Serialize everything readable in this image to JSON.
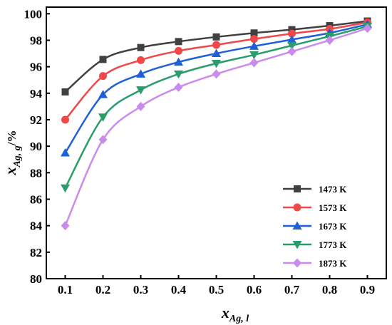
{
  "chart_data": {
    "type": "line",
    "x": [
      0.1,
      0.2,
      0.3,
      0.4,
      0.5,
      0.6,
      0.7,
      0.8,
      0.9
    ],
    "xlim": [
      0.05,
      0.95
    ],
    "ylim": [
      80,
      100.5
    ],
    "xticks": [
      "0.1",
      "0.2",
      "0.3",
      "0.4",
      "0.5",
      "0.6",
      "0.7",
      "0.8",
      "0.9"
    ],
    "yticks": [
      "80",
      "82",
      "84",
      "86",
      "88",
      "90",
      "92",
      "94",
      "96",
      "98",
      "100"
    ],
    "ytick_values": [
      80,
      82,
      84,
      86,
      88,
      90,
      92,
      94,
      96,
      98,
      100
    ],
    "xlabel": {
      "main": "x",
      "sub": "Ag, l"
    },
    "ylabel": {
      "main": "x",
      "sub": "Ag, g",
      "unit": "/%"
    },
    "legend_position": "bottom-right",
    "series": [
      {
        "name": "1473 K",
        "color": "#404040",
        "marker": "square",
        "values": [
          94.1,
          96.55,
          97.45,
          97.9,
          98.25,
          98.55,
          98.8,
          99.1,
          99.45
        ]
      },
      {
        "name": "1573 K",
        "color": "#f04848",
        "marker": "circle",
        "values": [
          92.0,
          95.3,
          96.5,
          97.2,
          97.65,
          98.1,
          98.5,
          98.85,
          99.35
        ]
      },
      {
        "name": "1673 K",
        "color": "#1f60d8",
        "marker": "triangle-up",
        "values": [
          89.5,
          93.9,
          95.45,
          96.35,
          97.0,
          97.55,
          98.05,
          98.55,
          99.2
        ]
      },
      {
        "name": "1773 K",
        "color": "#2a9d6a",
        "marker": "triangle-down",
        "values": [
          86.85,
          92.2,
          94.25,
          95.45,
          96.25,
          96.9,
          97.6,
          98.3,
          99.05
        ]
      },
      {
        "name": "1873 K",
        "color": "#c98cec",
        "marker": "diamond",
        "values": [
          84.0,
          90.5,
          93.0,
          94.45,
          95.45,
          96.3,
          97.15,
          98.0,
          98.9
        ]
      }
    ]
  }
}
